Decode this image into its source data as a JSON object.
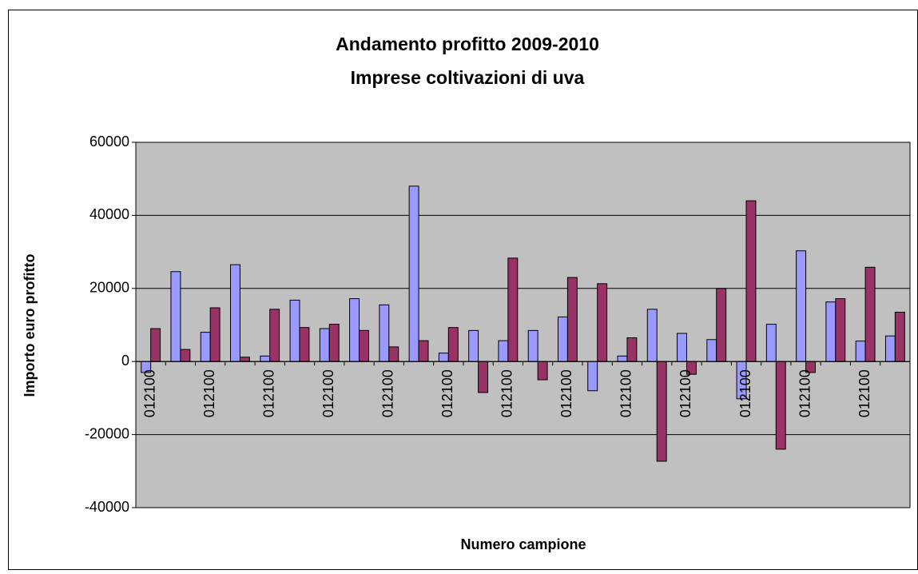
{
  "chart_data": {
    "type": "bar",
    "title": [
      "Andamento profitto 2009-2010",
      "Imprese coltivazioni di uva"
    ],
    "x_label": "Numero campione",
    "y_label": "Importo euro profitto",
    "categories": [
      "012100",
      null,
      "012100",
      null,
      "012100",
      null,
      "012100",
      null,
      "012100",
      null,
      "012100",
      null,
      "012100",
      null,
      "012100",
      null,
      "012100",
      null,
      "012100",
      null,
      "012100",
      null,
      "012100",
      null,
      "012100",
      null
    ],
    "series": [
      {
        "color": "#9999ff",
        "values": [
          -3000,
          24600,
          8000,
          26500,
          1500,
          16800,
          9000,
          17200,
          15500,
          48000,
          2300,
          8500,
          5700,
          8500,
          12200,
          -8000,
          1500,
          14300,
          7700,
          6000,
          -10200,
          10200,
          30300,
          16300,
          5600,
          7000
        ]
      },
      {
        "color": "#993366",
        "values": [
          9000,
          3300,
          14700,
          1200,
          14300,
          9300,
          10200,
          8500,
          4000,
          5700,
          9300,
          -8500,
          28300,
          -5000,
          23000,
          21300,
          6500,
          -27300,
          -3500,
          20000,
          44000,
          -24000,
          -3000,
          17200,
          25800,
          13500
        ]
      }
    ],
    "ylim": [
      -40000,
      60000
    ],
    "yticks": [
      -40000,
      -20000,
      0,
      20000,
      40000,
      60000
    ],
    "grid": true,
    "plot_background": "#c0c0c0"
  }
}
